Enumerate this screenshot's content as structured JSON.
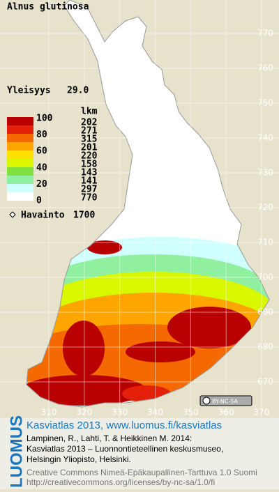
{
  "title": "Alnus glutinosa",
  "frequency": {
    "label": "Yleisyys",
    "value": "29.0"
  },
  "legend": {
    "header": "lkm",
    "scale_labels": [
      100,
      80,
      60,
      40,
      20,
      0
    ],
    "classes": [
      {
        "color": "#b80000",
        "count": 202
      },
      {
        "color": "#e4200a",
        "count": 271
      },
      {
        "color": "#f46a00",
        "count": 315
      },
      {
        "color": "#ffa500",
        "count": 201
      },
      {
        "color": "#ffe000",
        "count": 220
      },
      {
        "color": "#d8f800",
        "count": 158
      },
      {
        "color": "#80e040",
        "count": 143
      },
      {
        "color": "#90f0a0",
        "count": 141
      },
      {
        "color": "#d0ffff",
        "count": 297
      },
      {
        "color": "#ffffff",
        "count": 770
      }
    ]
  },
  "observations": {
    "label": "Havainto",
    "count": 1700
  },
  "grid": {
    "y_ticks": [
      770,
      760,
      750,
      740,
      730,
      720,
      710,
      700,
      690,
      680,
      670
    ],
    "x_ticks": [
      310,
      320,
      330,
      340,
      350,
      360,
      370
    ]
  },
  "license_badge": "BY-NC-SA",
  "footer": {
    "brand": "LUOMUS",
    "heading": "Kasviatlas 2013, www.luomus.fi/kasviatlas",
    "citation": [
      "Lampinen, R., Lahti, T. & Heikkinen M. 2014:",
      "Kasviatlas 2013 – Luonnontieteellinen keskusmuseo,",
      "Helsingin Yliopisto, Helsinki."
    ],
    "license": [
      "Creative Commons Nimeä-Epäkaupallinen-Tarttuva 1.0 Suomi",
      "http://creativecommons.org/licenses/by-nc-sa/1.0/fi"
    ]
  }
}
